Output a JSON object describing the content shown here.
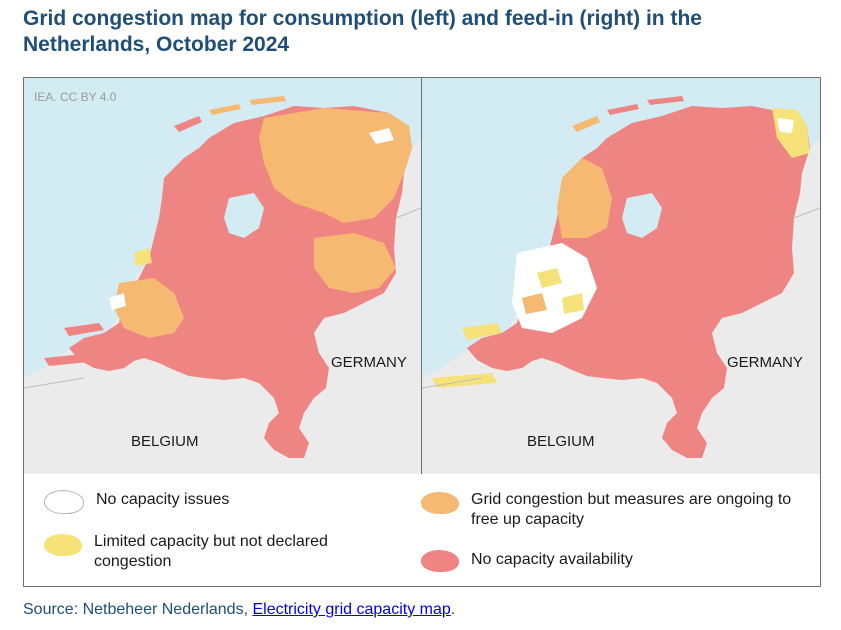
{
  "title": "Grid congestion map for consumption (left) and feed-in (right) in the Netherlands, October 2024",
  "credit": "IEA. CC BY 4.0",
  "maps": [
    {
      "name": "consumption",
      "labels": {
        "germany": "GERMANY",
        "belgium": "BELGIUM"
      }
    },
    {
      "name": "feed-in",
      "labels": {
        "germany": "GERMANY",
        "belgium": "BELGIUM"
      }
    }
  ],
  "colors": {
    "no_capacity_issues": "#ffffff",
    "limited_capacity": "#f7e27a",
    "congestion_measures": "#f5b971",
    "no_capacity_availability": "#ef8583",
    "sea": "#d3ebf3",
    "land_outside": "#ebebeb"
  },
  "legend": [
    {
      "key": "no_capacity_issues",
      "label": "No capacity issues"
    },
    {
      "key": "limited_capacity",
      "label": "Limited capacity but not declared congestion"
    },
    {
      "key": "congestion_measures",
      "label": "Grid congestion but measures are ongoing to free up capacity"
    },
    {
      "key": "no_capacity_availability",
      "label": "No capacity availability"
    }
  ],
  "source": {
    "prefix": "Source: Netbeheer Nederlands, ",
    "link_text": "Electricity grid capacity map",
    "suffix": "."
  }
}
